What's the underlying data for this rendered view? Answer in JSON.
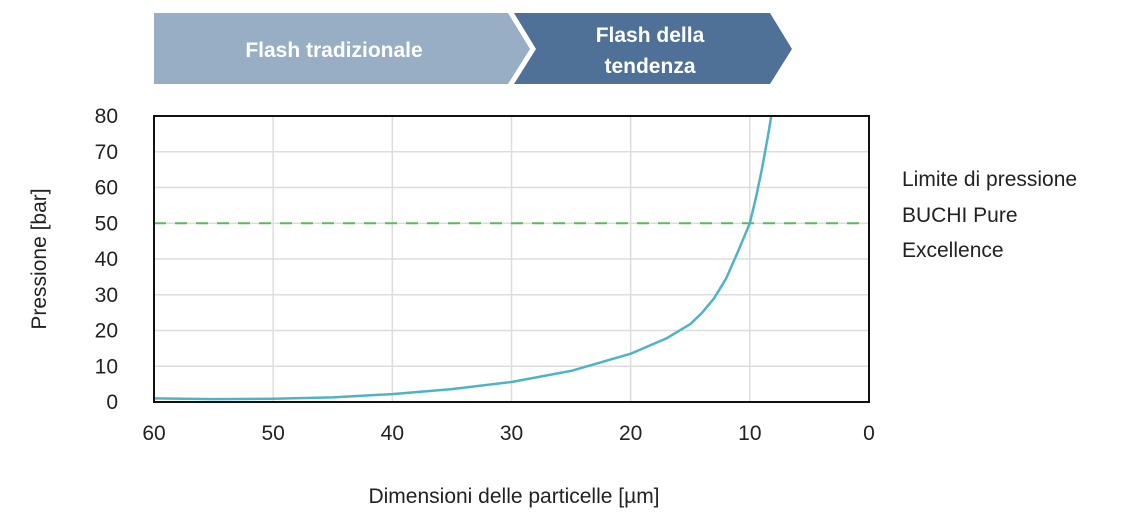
{
  "banner": {
    "left_label": "Flash tradizionale",
    "right_label_line1": "Flash della",
    "right_label_line2": "tendenza",
    "left_color": "#97aec4",
    "right_color": "#4f7097"
  },
  "annotation": {
    "line1": "Limite di pressione",
    "line2": "BUCHI Pure",
    "line3": "Excellence"
  },
  "chart_data": {
    "type": "line",
    "xlabel": "Dimensioni delle particelle [µm]",
    "ylabel": "Pressione [bar]",
    "xlim": [
      60,
      0
    ],
    "ylim": [
      0,
      80
    ],
    "x_reversed": true,
    "x_ticks": [
      "60",
      "50",
      "40",
      "30",
      "20",
      "10",
      "0"
    ],
    "y_ticks": [
      "0",
      "10",
      "20",
      "30",
      "40",
      "50",
      "60",
      "70",
      "80"
    ],
    "grid": true,
    "series": [
      {
        "color": "#4fb3c8",
        "points": [
          [
            60,
            1.0
          ],
          [
            55,
            0.8
          ],
          [
            50,
            0.9
          ],
          [
            45,
            1.3
          ],
          [
            40,
            2.2
          ],
          [
            35,
            3.6
          ],
          [
            30,
            5.6
          ],
          [
            25,
            8.7
          ],
          [
            20,
            13.5
          ],
          [
            17,
            17.8
          ],
          [
            15,
            21.8
          ],
          [
            14,
            25.0
          ],
          [
            13,
            29.0
          ],
          [
            12,
            34.5
          ],
          [
            11,
            42.0
          ],
          [
            10,
            50.0
          ],
          [
            9.5,
            57.0
          ],
          [
            9,
            65.0
          ],
          [
            8.5,
            74.0
          ],
          [
            8.2,
            80.0
          ]
        ]
      }
    ],
    "reference_line": {
      "y": 50,
      "style": "dashed",
      "color": "#5cb85c"
    }
  }
}
